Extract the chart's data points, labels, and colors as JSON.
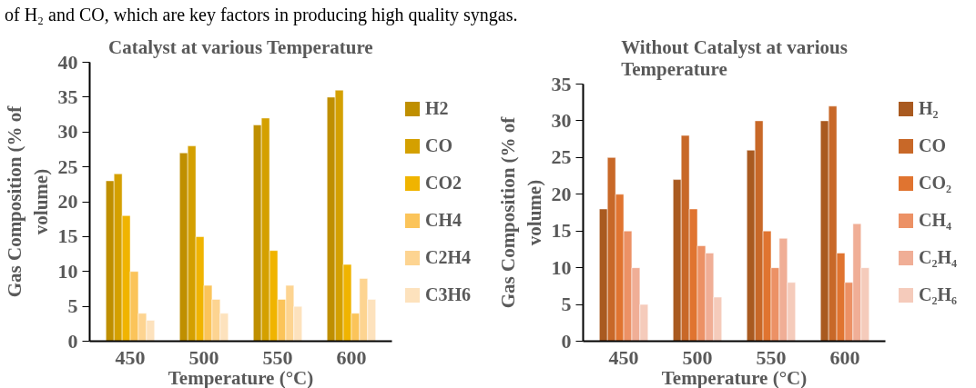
{
  "chart_data": [
    {
      "type": "bar",
      "title": "Catalyst at various Temperature",
      "xlabel": "Temperature (°C)",
      "ylabel": "Gas Composition (% of volume)",
      "annotations": [
        "of H₂ and CO, which are key factors in producing high quality syngas."
      ],
      "categories": [
        "450",
        "500",
        "550",
        "600"
      ],
      "ylim": [
        0,
        40
      ],
      "yticks": [
        0,
        5,
        10,
        15,
        20,
        25,
        30,
        35,
        40
      ],
      "grid": false,
      "legend": "right",
      "series": [
        {
          "name": "H2",
          "color": "#bf8f00",
          "values": [
            23,
            27,
            31,
            35
          ]
        },
        {
          "name": "CO",
          "color": "#d4a000",
          "values": [
            24,
            28,
            32,
            36
          ]
        },
        {
          "name": "CO2",
          "color": "#f0b400",
          "values": [
            18,
            15,
            13,
            11
          ]
        },
        {
          "name": "CH4",
          "color": "#fbc45a",
          "values": [
            10,
            8,
            6,
            4
          ]
        },
        {
          "name": "C2H4",
          "color": "#fdd491",
          "values": [
            4,
            6,
            8,
            9
          ]
        },
        {
          "name": "C3H6",
          "color": "#fde2bd",
          "values": [
            3,
            4,
            5,
            6
          ]
        }
      ]
    },
    {
      "type": "bar",
      "title": "Without Catalyst at various Temperature",
      "xlabel": "Temperature (°C)",
      "ylabel": "Gas Composition (% of volume)",
      "categories": [
        "450",
        "500",
        "550",
        "600"
      ],
      "ylim": [
        0,
        35
      ],
      "yticks": [
        0,
        5,
        10,
        15,
        20,
        25,
        30,
        35
      ],
      "grid": false,
      "legend": "right",
      "series": [
        {
          "name": "H₂",
          "color": "#a95a20",
          "values": [
            18,
            22,
            26,
            30
          ]
        },
        {
          "name": "CO",
          "color": "#c86828",
          "values": [
            25,
            28,
            30,
            32
          ]
        },
        {
          "name": "CO₂",
          "color": "#e07430",
          "values": [
            20,
            18,
            15,
            12
          ]
        },
        {
          "name": "CH₄",
          "color": "#ec9165",
          "values": [
            15,
            13,
            10,
            8
          ]
        },
        {
          "name": "C₂H₄",
          "color": "#f0ae96",
          "values": [
            10,
            12,
            14,
            16
          ]
        },
        {
          "name": "C₂H₆",
          "color": "#f5cbbb",
          "values": [
            5,
            6,
            8,
            10
          ]
        }
      ]
    }
  ]
}
